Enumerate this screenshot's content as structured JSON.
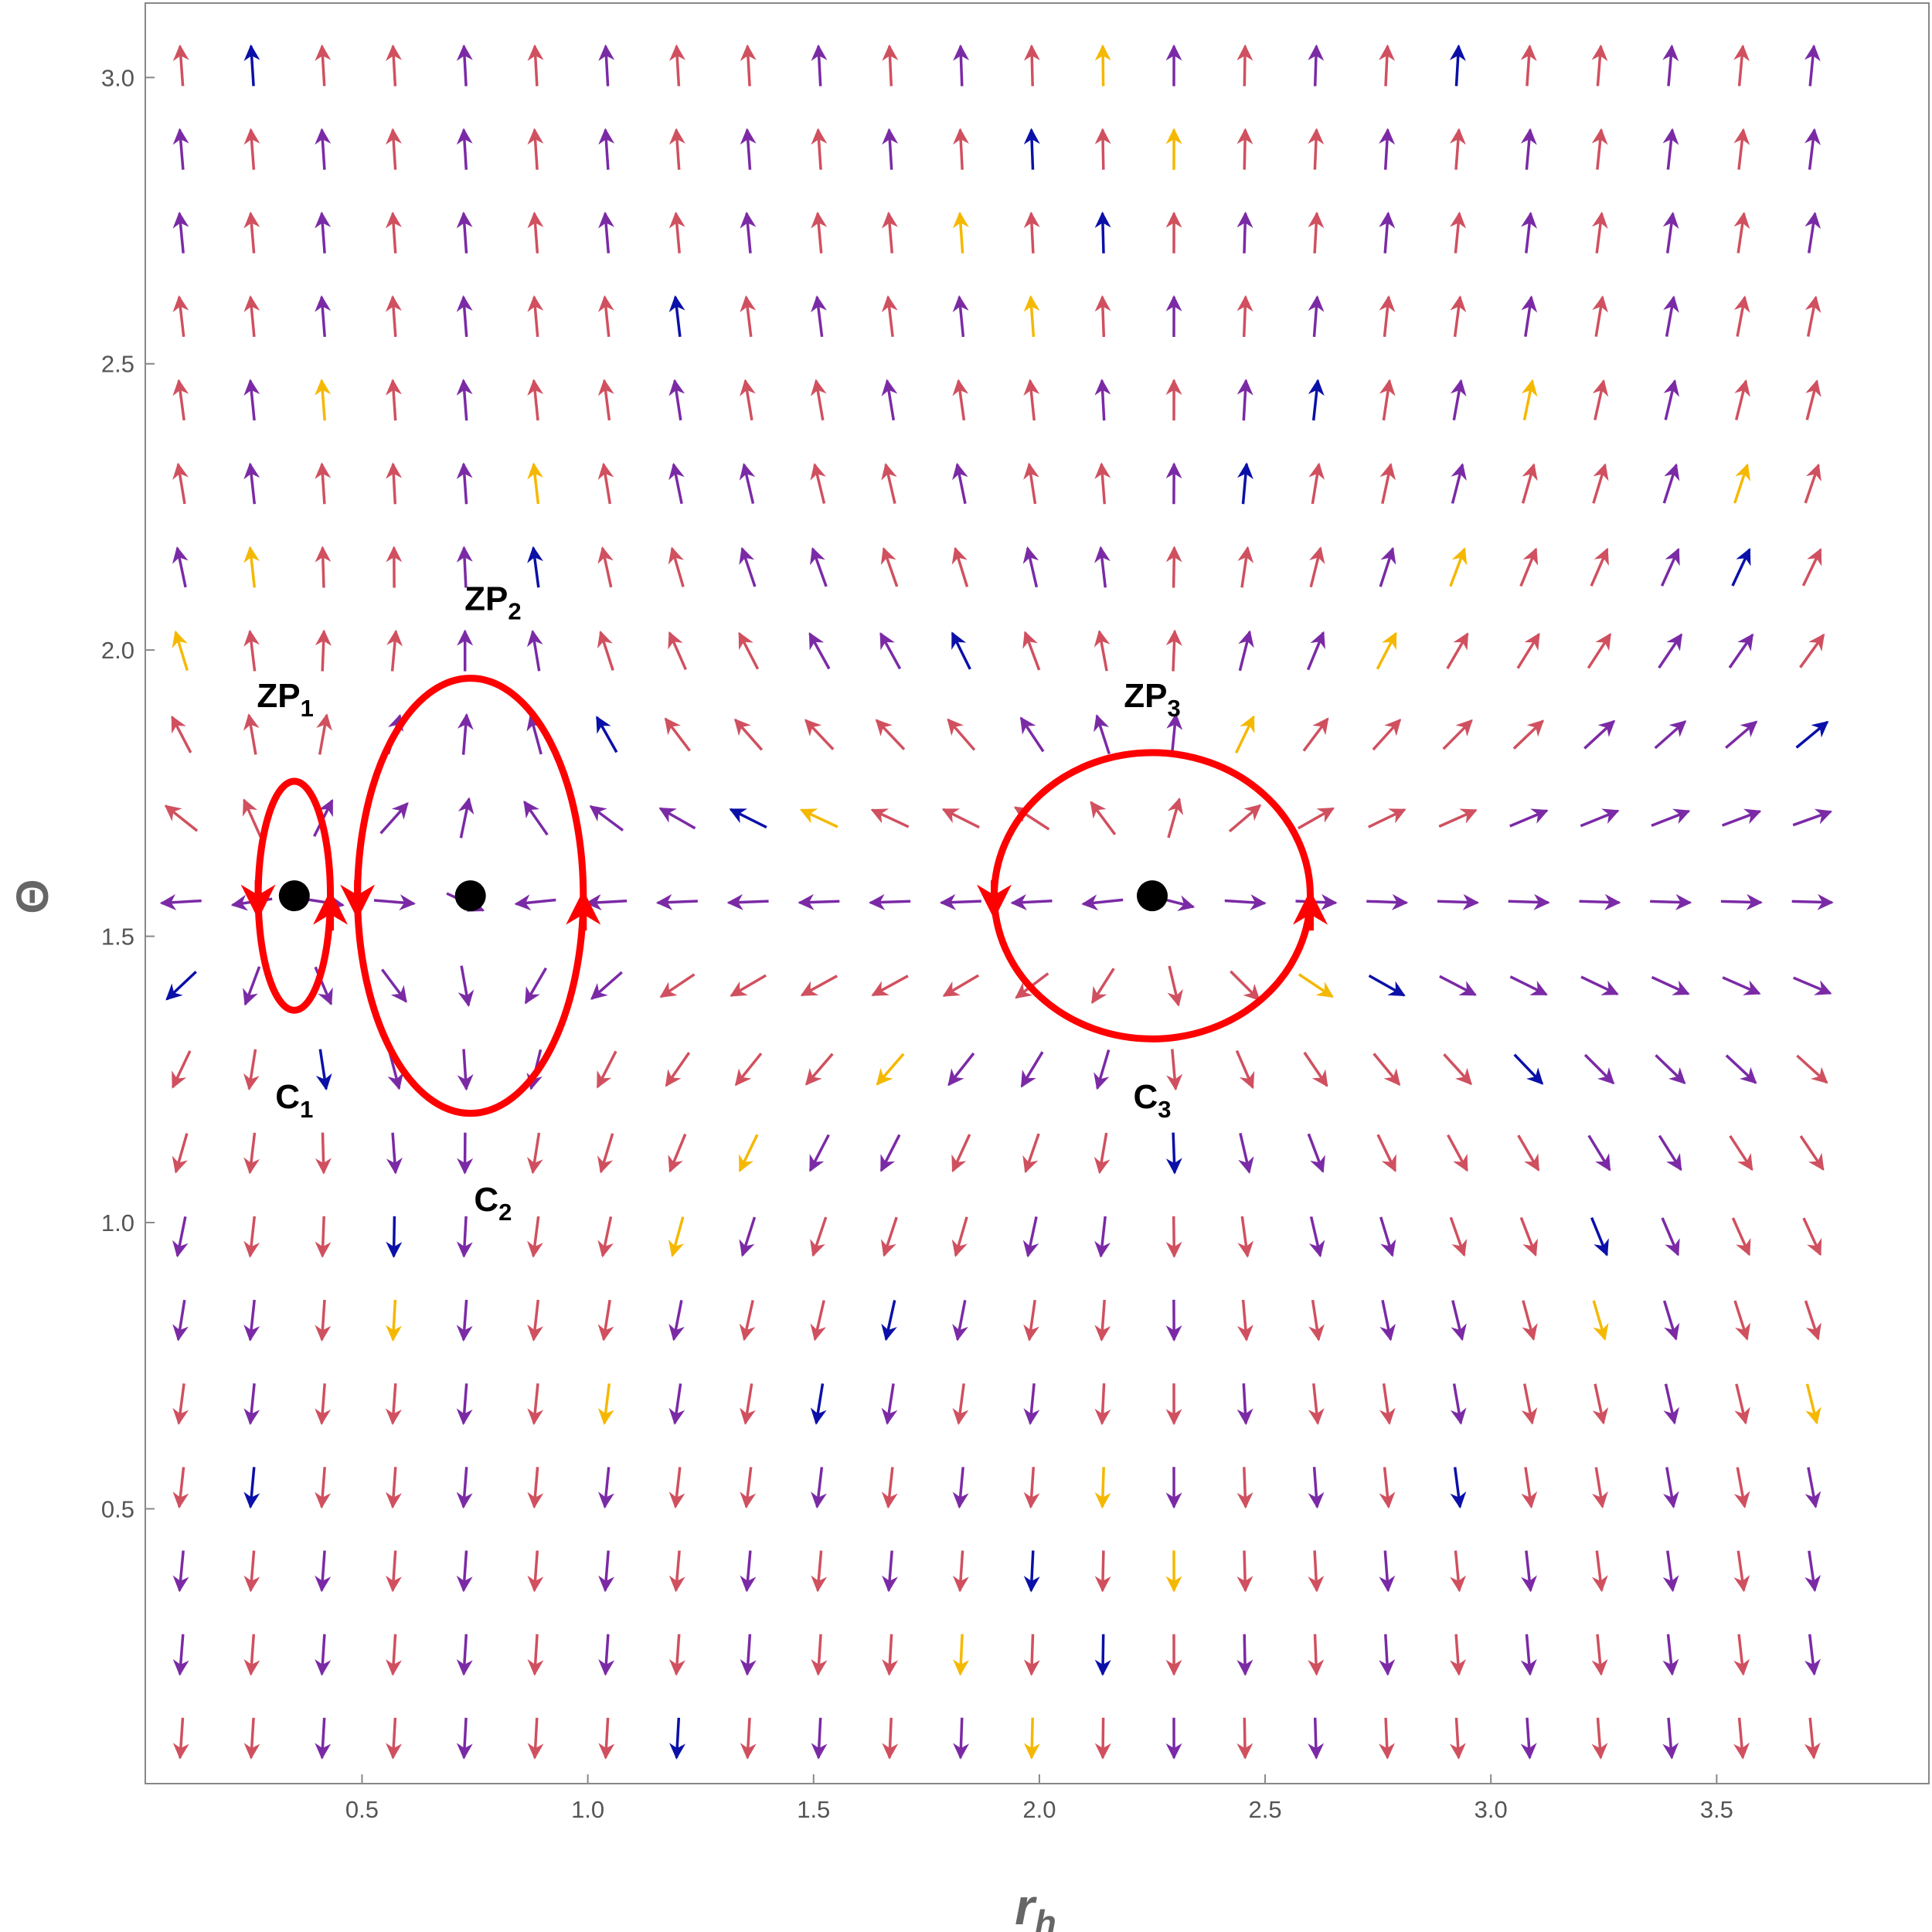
{
  "chart_data": {
    "type": "vector-field",
    "xlabel": "r",
    "xlabel_sub": "h",
    "ylabel": "Θ",
    "xlim": [
      0.02,
      3.97
    ],
    "ylim": [
      0.02,
      3.13
    ],
    "xticks": [
      "0.5",
      "1.0",
      "1.5",
      "2.0",
      "2.5",
      "3.0",
      "3.5"
    ],
    "xtick_values": [
      0.5,
      1.0,
      1.5,
      2.0,
      2.5,
      3.0,
      3.5
    ],
    "yticks": [
      "0.5",
      "1.0",
      "1.5",
      "2.0",
      "2.5",
      "3.0"
    ],
    "ytick_values": [
      0.5,
      1.0,
      1.5,
      2.0,
      2.5,
      3.0
    ],
    "grid": false,
    "field": {
      "x_start": 0.1,
      "x_step": 0.157,
      "x_count": 24,
      "y_start": 0.1,
      "y_step": 0.146,
      "y_count": 21
    },
    "arrow_colors": [
      "#d0505f",
      "#7b2aa6",
      "#0a10a8",
      "#f5b800"
    ],
    "zero_points": [
      {
        "label": "ZP",
        "sub": "1",
        "x": 0.35,
        "y": 1.5708,
        "label_x": 0.33,
        "label_y": 1.9
      },
      {
        "label": "ZP",
        "sub": "2",
        "x": 0.74,
        "y": 1.5708,
        "label_x": 0.79,
        "label_y": 2.07
      },
      {
        "label": "ZP",
        "sub": "3",
        "x": 2.25,
        "y": 1.5708,
        "label_x": 2.25,
        "label_y": 1.9
      }
    ],
    "contours": [
      {
        "label": "C",
        "sub": "1",
        "cx": 0.35,
        "cy": 1.5708,
        "rx": 0.08,
        "ry": 0.2,
        "label_x": 0.35,
        "label_y": 1.2,
        "color": "#ff0000"
      },
      {
        "label": "C",
        "sub": "2",
        "cx": 0.74,
        "cy": 1.5708,
        "rx": 0.25,
        "ry": 0.38,
        "label_x": 0.79,
        "label_y": 1.02,
        "color": "#ff0000"
      },
      {
        "label": "C",
        "sub": "3",
        "cx": 2.25,
        "cy": 1.5708,
        "rx": 0.35,
        "ry": 0.25,
        "label_x": 2.25,
        "label_y": 1.2,
        "color": "#ff0000"
      }
    ]
  }
}
